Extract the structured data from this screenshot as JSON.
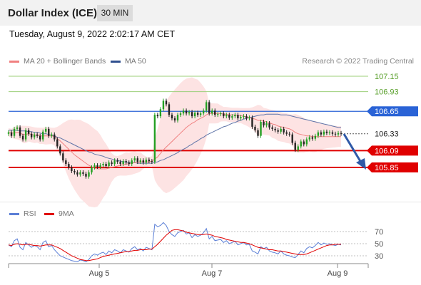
{
  "header": {
    "title": "Dollar Index (ICE)",
    "timeframe": "30 MIN"
  },
  "datetime": "Tuesday, August 9, 2022 2:02:17 AM CET",
  "legend": {
    "ma20": {
      "label": "MA 20 + Bollinger Bands",
      "color": "#f08080"
    },
    "ma50": {
      "label": "MA 50",
      "color": "#2f4f8f"
    }
  },
  "source": "Research © 2022 Trading Central",
  "rsi_legend": {
    "rsi": {
      "label": "RSI",
      "color": "#5b7fd6"
    },
    "ma9": {
      "label": "9MA",
      "color": "#e00000"
    }
  },
  "colors": {
    "up": "#22a022",
    "down": "#222222",
    "support": "#e00000",
    "resistance": "#2a63d6",
    "target": "#5aa02c",
    "price": "#222222"
  },
  "chart_data": [
    {
      "type": "candlestick",
      "ylim": [
        105.7,
        107.3
      ],
      "x_ticks": [
        "Aug 5",
        "Aug 7",
        "Aug 9"
      ],
      "levels": [
        {
          "label": "107.15",
          "value": 107.15,
          "kind": "target"
        },
        {
          "label": "106.93",
          "value": 106.93,
          "kind": "target"
        },
        {
          "label": "106.65",
          "value": 106.65,
          "kind": "resistance"
        },
        {
          "label": "106.33",
          "value": 106.33,
          "kind": "last"
        },
        {
          "label": "106.09",
          "value": 106.09,
          "kind": "support"
        },
        {
          "label": "105.85",
          "value": 105.85,
          "kind": "support"
        }
      ],
      "close": [
        106.35,
        106.3,
        106.4,
        106.42,
        106.3,
        106.25,
        106.38,
        106.33,
        106.28,
        106.32,
        106.3,
        106.25,
        106.36,
        106.4,
        106.3,
        106.32,
        106.25,
        106.15,
        106.05,
        105.95,
        105.9,
        105.85,
        105.8,
        105.78,
        105.75,
        105.78,
        105.76,
        105.72,
        105.78,
        105.85,
        105.88,
        105.86,
        105.88,
        105.9,
        105.87,
        105.92,
        105.9,
        105.95,
        105.93,
        105.9,
        105.94,
        105.92,
        105.9,
        105.95,
        105.98,
        105.93,
        105.95,
        105.92,
        105.96,
        105.94,
        105.93,
        106.6,
        106.58,
        106.68,
        106.8,
        106.75,
        106.6,
        106.55,
        106.52,
        106.6,
        106.62,
        106.66,
        106.62,
        106.64,
        106.58,
        106.63,
        106.6,
        106.62,
        106.66,
        106.78,
        106.62,
        106.66,
        106.6,
        106.61,
        106.62,
        106.58,
        106.6,
        106.56,
        106.58,
        106.6,
        106.55,
        106.57,
        106.58,
        106.55,
        106.56,
        106.43,
        106.38,
        106.3,
        106.5,
        106.45,
        106.48,
        106.42,
        106.4,
        106.38,
        106.36,
        106.4,
        106.35,
        106.33,
        106.32,
        106.2,
        106.1,
        106.15,
        106.22,
        106.18,
        106.25,
        106.28,
        106.26,
        106.3,
        106.35,
        106.32,
        106.36,
        106.34,
        106.35,
        106.33,
        106.32,
        106.34,
        106.33
      ],
      "ma20": [
        106.35,
        106.34,
        106.34,
        106.35,
        106.34,
        106.32,
        106.32,
        106.33,
        106.32,
        106.31,
        106.31,
        106.3,
        106.3,
        106.3,
        106.3,
        106.3,
        106.29,
        106.26,
        106.23,
        106.19,
        106.15,
        106.11,
        106.07,
        106.03,
        106,
        105.97,
        105.94,
        105.91,
        105.88,
        105.86,
        105.84,
        105.83,
        105.83,
        105.83,
        105.83,
        105.84,
        105.85,
        105.86,
        105.87,
        105.88,
        105.89,
        105.9,
        105.9,
        105.91,
        105.92,
        105.92,
        105.93,
        105.93,
        105.93,
        105.93,
        105.94,
        105.97,
        106.0,
        106.05,
        106.1,
        106.14,
        106.18,
        106.22,
        106.26,
        106.3,
        106.34,
        106.38,
        106.42,
        106.45,
        106.48,
        106.5,
        106.53,
        106.55,
        106.57,
        106.6,
        106.62,
        106.62,
        106.62,
        106.62,
        106.62,
        106.61,
        106.61,
        106.6,
        106.6,
        106.6,
        106.59,
        106.59,
        106.58,
        106.57,
        106.56,
        106.55,
        106.54,
        106.52,
        106.52,
        106.51,
        106.5,
        106.49,
        106.47,
        106.46,
        106.44,
        106.43,
        106.42,
        106.41,
        106.4,
        106.38,
        106.35,
        106.33,
        106.32,
        106.31,
        106.3,
        106.3,
        106.29,
        106.29,
        106.29,
        106.29,
        106.29,
        106.29,
        106.29,
        106.29,
        106.29,
        106.29,
        106.29
      ],
      "ma50": [
        106.38,
        106.38,
        106.38,
        106.38,
        106.37,
        106.37,
        106.37,
        106.36,
        106.36,
        106.35,
        106.35,
        106.34,
        106.33,
        106.33,
        106.32,
        106.31,
        106.3,
        106.28,
        106.27,
        106.25,
        106.23,
        106.21,
        106.19,
        106.17,
        106.15,
        106.13,
        106.11,
        106.09,
        106.07,
        106.06,
        106.04,
        106.03,
        106.02,
        106.01,
        105.99,
        105.98,
        105.97,
        105.96,
        105.95,
        105.94,
        105.93,
        105.93,
        105.92,
        105.92,
        105.92,
        105.91,
        105.91,
        105.91,
        105.91,
        105.91,
        105.91,
        105.92,
        105.93,
        105.95,
        105.96,
        105.98,
        106.0,
        106.02,
        106.04,
        106.06,
        106.09,
        106.11,
        106.13,
        106.16,
        106.18,
        106.21,
        106.23,
        106.26,
        106.28,
        106.31,
        106.33,
        106.35,
        106.37,
        106.39,
        106.41,
        106.43,
        106.44,
        106.46,
        106.48,
        106.49,
        106.51,
        106.52,
        106.54,
        106.55,
        106.56,
        106.57,
        106.58,
        106.59,
        106.6,
        106.6,
        106.61,
        106.61,
        106.61,
        106.61,
        106.61,
        106.6,
        106.6,
        106.6,
        106.59,
        106.58,
        106.57,
        106.56,
        106.55,
        106.54,
        106.53,
        106.52,
        106.51,
        106.5,
        106.49,
        106.48,
        106.47,
        106.46,
        106.45,
        106.44,
        106.43,
        106.42,
        106.42
      ]
    },
    {
      "type": "line",
      "ylim": [
        20,
        90
      ],
      "y_ticks": [
        70,
        50,
        30
      ],
      "series": [
        {
          "name": "RSI",
          "values": [
            48,
            45,
            55,
            58,
            44,
            40,
            52,
            48,
            44,
            47,
            45,
            40,
            52,
            55,
            45,
            47,
            40,
            35,
            30,
            28,
            26,
            24,
            22,
            21,
            20,
            23,
            22,
            20,
            24,
            30,
            33,
            31,
            34,
            36,
            32,
            38,
            35,
            40,
            38,
            35,
            40,
            38,
            36,
            42,
            45,
            40,
            42,
            38,
            44,
            42,
            40,
            82,
            78,
            80,
            85,
            80,
            70,
            65,
            62,
            68,
            70,
            72,
            66,
            68,
            60,
            65,
            62,
            64,
            68,
            75,
            58,
            62,
            55,
            56,
            57,
            52,
            55,
            50,
            52,
            54,
            48,
            50,
            52,
            48,
            49,
            38,
            36,
            33,
            45,
            42,
            44,
            38,
            36,
            35,
            33,
            38,
            33,
            31,
            30,
            28,
            27,
            32,
            38,
            35,
            42,
            45,
            43,
            47,
            52,
            48,
            51,
            49,
            50,
            48,
            47,
            49,
            48
          ]
        },
        {
          "name": "9MA",
          "values": [
            48,
            47,
            49,
            50,
            49,
            48,
            49,
            49,
            48,
            47,
            47,
            46,
            47,
            48,
            48,
            48,
            46,
            44,
            42,
            39,
            36,
            33,
            30,
            28,
            26,
            24,
            23,
            22,
            22,
            23,
            24,
            25,
            27,
            29,
            30,
            31,
            32,
            33,
            34,
            35,
            36,
            37,
            37,
            38,
            39,
            39,
            40,
            40,
            40,
            41,
            41,
            45,
            49,
            54,
            59,
            64,
            68,
            72,
            73,
            73,
            72,
            71,
            69,
            68,
            67,
            66,
            65,
            65,
            65,
            66,
            65,
            64,
            62,
            61,
            60,
            59,
            57,
            56,
            55,
            54,
            53,
            52,
            52,
            51,
            50,
            48,
            46,
            44,
            43,
            42,
            41,
            40,
            40,
            39,
            38,
            38,
            37,
            36,
            35,
            34,
            33,
            32,
            32,
            32,
            33,
            35,
            37,
            39,
            41,
            43,
            45,
            47,
            48,
            48,
            49,
            49,
            49
          ]
        }
      ]
    }
  ]
}
